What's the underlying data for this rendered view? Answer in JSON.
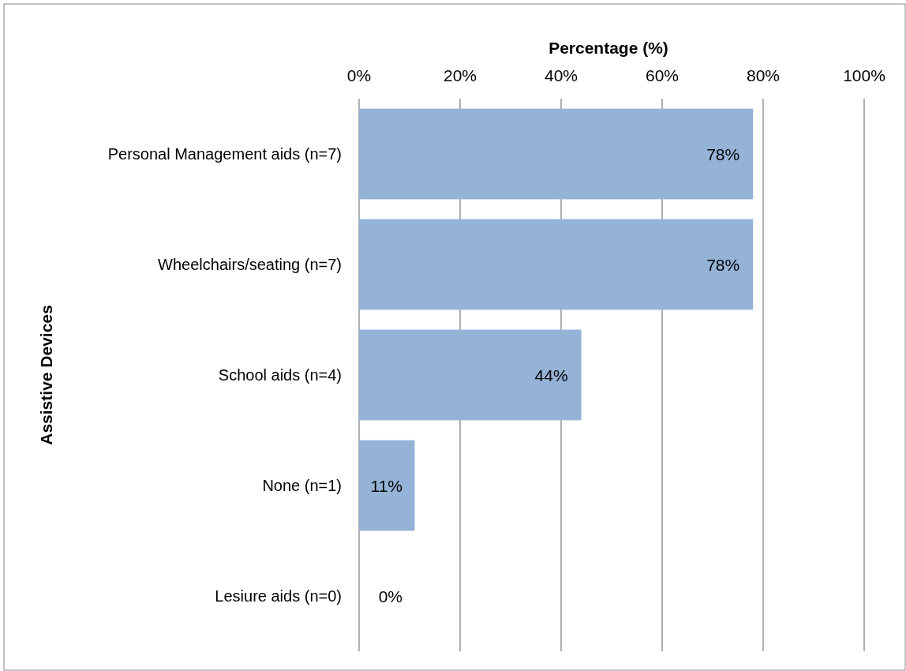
{
  "chart_data": {
    "type": "bar",
    "orientation": "horizontal",
    "xlabel": "Percentage (%)",
    "ylabel": "Assistive Devices",
    "categories": [
      "Personal Management aids (n=7)",
      "Wheelchairs/seating (n=7)",
      "School aids (n=4)",
      "None (n=1)",
      "Lesiure aids (n=0)"
    ],
    "values": [
      78,
      78,
      44,
      11,
      0
    ],
    "value_labels": [
      "78%",
      "78%",
      "44%",
      "11%",
      "0%"
    ],
    "color": "#95b3d7",
    "xlim": [
      0,
      100
    ],
    "xticks": [
      {
        "value": 0,
        "label": "0%"
      },
      {
        "value": 20,
        "label": "20%"
      },
      {
        "value": 40,
        "label": "40%"
      },
      {
        "value": 60,
        "label": "60%"
      },
      {
        "value": 80,
        "label": "80%"
      },
      {
        "value": 100,
        "label": "100%"
      }
    ],
    "grid": "x"
  }
}
